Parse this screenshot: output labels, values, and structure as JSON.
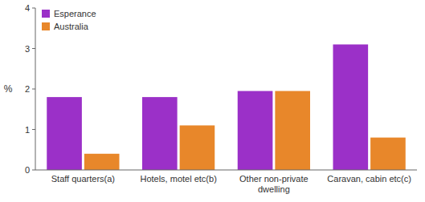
{
  "chart_data": {
    "type": "bar",
    "categories": [
      "Staff quarters(a)",
      "Hotels, motel etc(b)",
      "Other non-private dwelling",
      "Caravan, cabin etc(c)"
    ],
    "series": [
      {
        "name": "Esperance",
        "color": "#9B30C8",
        "values": [
          1.8,
          1.8,
          1.95,
          3.1
        ]
      },
      {
        "name": "Australia",
        "color": "#E8872A",
        "values": [
          0.4,
          1.1,
          1.95,
          0.8
        ]
      }
    ],
    "ylabel": "%",
    "ylim": [
      0,
      4
    ],
    "yticks": [
      0,
      1,
      2,
      3,
      4
    ],
    "grid": false,
    "legend": "upper left"
  }
}
